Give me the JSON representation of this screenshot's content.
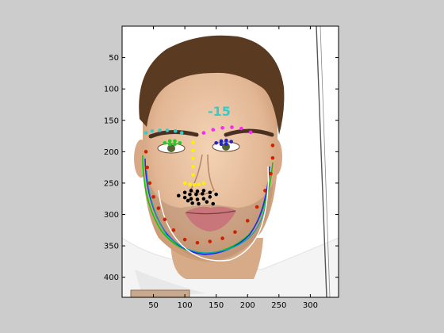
{
  "figure": {
    "background": "#cccccc",
    "axes_background": "#ffffff",
    "xticks": [
      "50",
      "100",
      "150",
      "200",
      "250",
      "300"
    ],
    "yticks": [
      "50",
      "100",
      "150",
      "200",
      "250",
      "300",
      "350",
      "400"
    ],
    "xlim": [
      0,
      345
    ],
    "ylim": [
      0,
      432
    ],
    "y_reversed": true
  },
  "image": {
    "overlay_text": "-15",
    "overlay_color": "#33cccc",
    "skin_color": "#e6bc9c",
    "hair_color": "#5a3a20"
  },
  "landmarks": {
    "left_eyebrow": {
      "color": "#33cccc",
      "points": [
        [
          38,
          170
        ],
        [
          48,
          167
        ],
        [
          60,
          166
        ],
        [
          72,
          166
        ],
        [
          85,
          167
        ],
        [
          95,
          170
        ]
      ]
    },
    "right_eyebrow": {
      "color": "#ff22ff",
      "points": [
        [
          130,
          170
        ],
        [
          145,
          165
        ],
        [
          160,
          162
        ],
        [
          175,
          161
        ],
        [
          190,
          163
        ],
        [
          205,
          169
        ]
      ]
    },
    "left_eye": {
      "color": "#22cc22",
      "points": [
        [
          68,
          186
        ],
        [
          76,
          183
        ],
        [
          84,
          183
        ],
        [
          92,
          186
        ],
        [
          84,
          188
        ],
        [
          76,
          188
        ]
      ]
    },
    "right_eye": {
      "color": "#2222cc",
      "points": [
        [
          150,
          186
        ],
        [
          158,
          183
        ],
        [
          166,
          182
        ],
        [
          174,
          184
        ],
        [
          166,
          188
        ],
        [
          158,
          188
        ]
      ]
    },
    "nose": {
      "color": "#ffee00",
      "points": [
        [
          113,
          185
        ],
        [
          113,
          198
        ],
        [
          113,
          211
        ],
        [
          113,
          224
        ],
        [
          113,
          237
        ],
        [
          100,
          250
        ],
        [
          108,
          252
        ],
        [
          115,
          253
        ],
        [
          122,
          252
        ],
        [
          130,
          250
        ]
      ]
    },
    "mouth": {
      "color": "#000000",
      "points": [
        [
          90,
          270
        ],
        [
          100,
          265
        ],
        [
          110,
          262
        ],
        [
          120,
          263
        ],
        [
          130,
          262
        ],
        [
          140,
          265
        ],
        [
          150,
          268
        ],
        [
          140,
          272
        ],
        [
          130,
          275
        ],
        [
          120,
          276
        ],
        [
          110,
          275
        ],
        [
          100,
          273
        ],
        [
          108,
          268
        ],
        [
          118,
          268
        ],
        [
          128,
          267
        ],
        [
          112,
          282
        ],
        [
          122,
          283
        ],
        [
          105,
          278
        ],
        [
          135,
          280
        ],
        [
          145,
          283
        ]
      ]
    },
    "jaw": {
      "color": "#cc2200",
      "points": [
        [
          38,
          200
        ],
        [
          40,
          225
        ],
        [
          44,
          250
        ],
        [
          50,
          272
        ],
        [
          58,
          290
        ],
        [
          68,
          308
        ],
        [
          82,
          325
        ],
        [
          100,
          340
        ],
        [
          120,
          345
        ],
        [
          140,
          343
        ],
        [
          160,
          338
        ],
        [
          180,
          328
        ],
        [
          200,
          310
        ],
        [
          215,
          288
        ],
        [
          228,
          262
        ],
        [
          237,
          235
        ],
        [
          240,
          210
        ],
        [
          240,
          190
        ]
      ]
    }
  },
  "contours": [
    {
      "color": "#00cc00"
    },
    {
      "color": "#2222ff"
    },
    {
      "color": "#00aaaa"
    },
    {
      "color": "#ffffff"
    }
  ]
}
